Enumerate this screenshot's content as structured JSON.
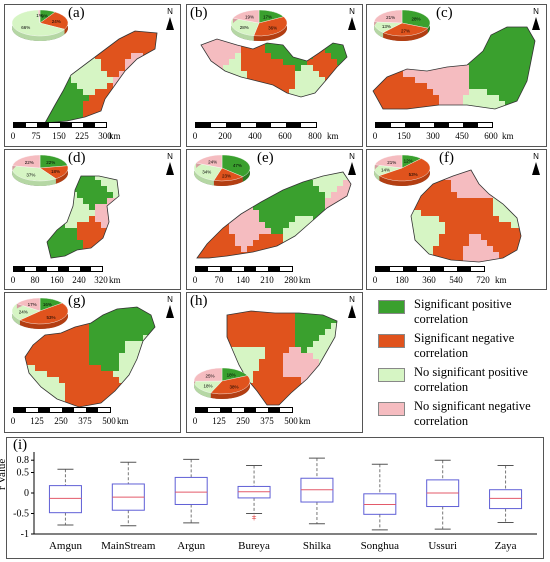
{
  "colors": {
    "sig_pos": "#3aa02e",
    "sig_neg": "#e0531d",
    "nonsig_pos": "#d6f5c4",
    "nonsig_neg": "#f5bcc0",
    "box": "#5f5fd6",
    "median": "#e35a6a",
    "outlier": "#d33"
  },
  "north_label": "N",
  "panels": [
    {
      "label": "(a)",
      "ticks": [
        "0",
        "75",
        "150",
        "225",
        "300"
      ],
      "unit": "km",
      "pie": [
        {
          "label": "9%",
          "value": 9
        },
        {
          "label": "24%",
          "value": 24
        },
        {
          "label": "66%",
          "value": 66
        },
        {
          "label": "1%",
          "value": 1
        }
      ]
    },
    {
      "label": "(b)",
      "ticks": [
        "0",
        "200",
        "400",
        "600",
        "800"
      ],
      "unit": "km",
      "pie": [
        {
          "label": "17%",
          "value": 17
        },
        {
          "label": "36%",
          "value": 36
        },
        {
          "label": "28%",
          "value": 28
        },
        {
          "label": "19%",
          "value": 19
        }
      ]
    },
    {
      "label": "(c)",
      "ticks": [
        "0",
        "150",
        "300",
        "450",
        "600"
      ],
      "unit": "km",
      "pie": [
        {
          "label": "28%",
          "value": 28
        },
        {
          "label": "27%",
          "value": 27
        },
        {
          "label": "13%",
          "value": 13
        },
        {
          "label": "21%",
          "value": 21
        }
      ]
    },
    {
      "label": "(d)",
      "ticks": [
        "0",
        "80",
        "160",
        "240",
        "320"
      ],
      "unit": "km",
      "pie": [
        {
          "label": "22%",
          "value": 22
        },
        {
          "label": "18%",
          "value": 18
        },
        {
          "label": "37%",
          "value": 37
        },
        {
          "label": "22%",
          "value": 22
        }
      ]
    },
    {
      "label": "(e)",
      "ticks": [
        "0",
        "70",
        "140",
        "210",
        "280"
      ],
      "unit": "km",
      "pie": [
        {
          "label": "47%",
          "value": 47
        },
        {
          "label": "23%",
          "value": 23
        },
        {
          "label": "34%",
          "value": 34
        },
        {
          "label": "24%",
          "value": 24
        }
      ]
    },
    {
      "label": "(f)",
      "ticks": [
        "0",
        "180",
        "360",
        "540",
        "720"
      ],
      "unit": "km",
      "pie": [
        {
          "label": "12%",
          "value": 12
        },
        {
          "label": "53%",
          "value": 53
        },
        {
          "label": "14%",
          "value": 14
        },
        {
          "label": "21%",
          "value": 21
        }
      ]
    },
    {
      "label": "(g)",
      "ticks": [
        "0",
        "125",
        "250",
        "375",
        "500"
      ],
      "unit": "km",
      "pie": [
        {
          "label": "16%",
          "value": 16
        },
        {
          "label": "53%",
          "value": 53
        },
        {
          "label": "24%",
          "value": 24
        },
        {
          "label": "17%",
          "value": 17
        }
      ]
    },
    {
      "label": "(h)",
      "ticks": [
        "0",
        "125",
        "250",
        "375",
        "500"
      ],
      "unit": "km",
      "pie": [
        {
          "label": "18%",
          "value": 18
        },
        {
          "label": "38%",
          "value": 38
        },
        {
          "label": "18%",
          "value": 18
        },
        {
          "label": "25%",
          "value": 25
        }
      ]
    }
  ],
  "legend": [
    {
      "label": "Significant positive correlation",
      "color": "#3aa02e"
    },
    {
      "label": "Significant negative correlation",
      "color": "#e0531d"
    },
    {
      "label": "No significant positive correlation",
      "color": "#d6f5c4"
    },
    {
      "label": "No significant negative correlation",
      "color": "#f5bcc0"
    }
  ],
  "chart_data": {
    "type": "box",
    "panel_label": "(i)",
    "ylabel": "r Value",
    "ylim": [
      -1,
      1
    ],
    "yticks": [
      "0.8",
      "0.5",
      "0",
      "-0.5",
      "-1"
    ],
    "categories": [
      "Amgun",
      "MainStream",
      "Argun",
      "Bureya",
      "Shilka",
      "Songhua",
      "Ussuri",
      "Zaya"
    ],
    "boxes": [
      {
        "name": "Amgun",
        "min": -0.78,
        "q1": -0.48,
        "median": -0.13,
        "q3": 0.18,
        "max": 0.58
      },
      {
        "name": "MainStream",
        "min": -0.8,
        "q1": -0.42,
        "median": -0.1,
        "q3": 0.22,
        "max": 0.75
      },
      {
        "name": "Argun",
        "min": -0.73,
        "q1": -0.28,
        "median": 0.02,
        "q3": 0.38,
        "max": 0.82
      },
      {
        "name": "Bureya",
        "min": -0.5,
        "q1": -0.12,
        "median": 0.03,
        "q3": 0.16,
        "max": 0.67
      },
      {
        "name": "Shilka",
        "min": -0.75,
        "q1": -0.22,
        "median": 0.08,
        "q3": 0.36,
        "max": 0.85
      },
      {
        "name": "Songhua",
        "min": -0.9,
        "q1": -0.52,
        "median": -0.28,
        "q3": -0.02,
        "max": 0.7
      },
      {
        "name": "Ussuri",
        "min": -0.88,
        "q1": -0.33,
        "median": 0.0,
        "q3": 0.32,
        "max": 0.8
      },
      {
        "name": "Zaya",
        "min": -0.72,
        "q1": -0.38,
        "median": -0.13,
        "q3": 0.08,
        "max": 0.67
      }
    ],
    "outliers": [
      {
        "name": "Bureya",
        "values": [
          -0.58,
          -0.62
        ]
      }
    ]
  }
}
